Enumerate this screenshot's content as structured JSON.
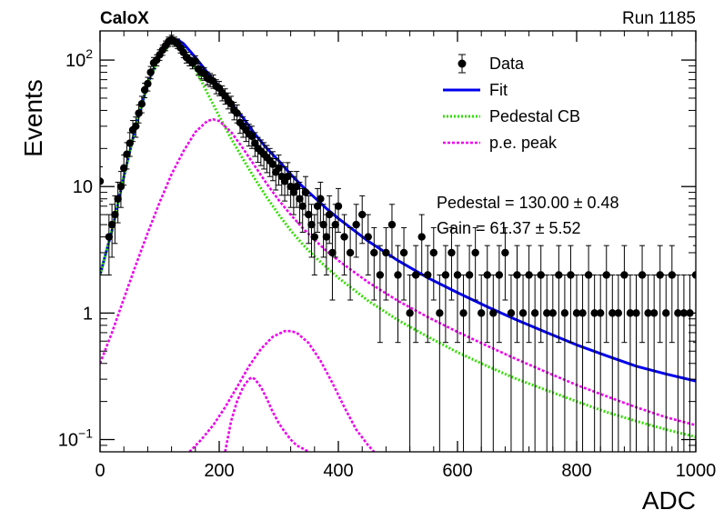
{
  "chart_data": {
    "type": "scatter",
    "experiment_label": "CaloX",
    "run_label": "Run 1185",
    "xlabel": "ADC",
    "ylabel": "Events",
    "xlim": [
      0,
      1000
    ],
    "ylim": [
      0.08,
      170
    ],
    "yscale": "log",
    "grid": false,
    "legend_position": "top-right",
    "x_ticks": [
      0,
      200,
      400,
      600,
      800,
      1000
    ],
    "y_ticks": [
      {
        "value": 0.1,
        "base": "10",
        "exp": "−1"
      },
      {
        "value": 1,
        "base": "1",
        "exp": ""
      },
      {
        "value": 10,
        "base": "10",
        "exp": ""
      },
      {
        "value": 100,
        "base": "10",
        "exp": "2"
      }
    ],
    "legend": [
      {
        "label": "Data",
        "style": "marker",
        "color": "#000000"
      },
      {
        "label": "Fit",
        "style": "solid",
        "color": "#0000ee"
      },
      {
        "label": "Pedestal CB",
        "style": "dotted",
        "color": "#33dd00"
      },
      {
        "label": "p.e. peak",
        "style": "dashed",
        "color": "#ee00ee"
      }
    ],
    "annotations": [
      "Pedestal = 130.00 ± 0.48",
      "Gain = 61.37 ± 5.52"
    ],
    "series": [
      {
        "name": "Data",
        "type": "points",
        "color": "#000000",
        "x": [
          0,
          15,
          20,
          25,
          30,
          35,
          40,
          45,
          50,
          55,
          60,
          65,
          70,
          75,
          80,
          85,
          90,
          95,
          100,
          105,
          110,
          115,
          120,
          125,
          130,
          135,
          140,
          145,
          150,
          155,
          160,
          165,
          170,
          175,
          180,
          185,
          190,
          195,
          200,
          205,
          210,
          215,
          220,
          225,
          230,
          235,
          240,
          245,
          250,
          255,
          260,
          265,
          270,
          275,
          280,
          285,
          290,
          295,
          300,
          305,
          310,
          315,
          320,
          325,
          330,
          335,
          340,
          345,
          350,
          355,
          360,
          365,
          370,
          375,
          380,
          385,
          390,
          395,
          400,
          410,
          420,
          430,
          440,
          450,
          460,
          470,
          480,
          490,
          500,
          510,
          520,
          530,
          540,
          550,
          560,
          570,
          580,
          590,
          600,
          610,
          620,
          630,
          640,
          650,
          660,
          670,
          680,
          690,
          700,
          710,
          720,
          730,
          740,
          750,
          760,
          770,
          780,
          790,
          800,
          810,
          820,
          830,
          840,
          850,
          860,
          870,
          880,
          890,
          900,
          910,
          920,
          930,
          940,
          950,
          960,
          970,
          980,
          990,
          1000
        ],
        "y": [
          11,
          4,
          5,
          6,
          8,
          10,
          14,
          18,
          22,
          28,
          30,
          38,
          45,
          58,
          65,
          80,
          95,
          100,
          110,
          120,
          130,
          140,
          145,
          140,
          135,
          125,
          115,
          105,
          100,
          95,
          98,
          85,
          80,
          78,
          72,
          70,
          68,
          62,
          60,
          55,
          52,
          48,
          45,
          40,
          38,
          32,
          30,
          28,
          26,
          25,
          22,
          20,
          19,
          18,
          17,
          16,
          15,
          13,
          14,
          12,
          11,
          12,
          10,
          9,
          10,
          8,
          7,
          9,
          6,
          5,
          4,
          7,
          8,
          5,
          4,
          6,
          3,
          5,
          7,
          4,
          3,
          5,
          6,
          4,
          3,
          2,
          3,
          5,
          2,
          3,
          1,
          2,
          4,
          2,
          3,
          1,
          2,
          3,
          2,
          1,
          2,
          3,
          1,
          2,
          1,
          2,
          3,
          1,
          2,
          1,
          2,
          1,
          2,
          1,
          1,
          2,
          1,
          2,
          1,
          1,
          2,
          1,
          1,
          2,
          1,
          1,
          2,
          1,
          1,
          2,
          1,
          1,
          2,
          1,
          2,
          1,
          1,
          1,
          2
        ]
      },
      {
        "name": "Fit",
        "type": "line",
        "color": "#0000ee",
        "x": [
          0,
          20,
          40,
          60,
          80,
          100,
          120,
          130,
          140,
          160,
          180,
          200,
          220,
          240,
          260,
          280,
          300,
          320,
          340,
          360,
          380,
          400,
          450,
          500,
          550,
          600,
          650,
          700,
          750,
          800,
          850,
          900,
          950,
          1000
        ],
        "y": [
          2,
          4.5,
          12,
          30,
          65,
          110,
          140,
          145,
          135,
          105,
          80,
          62,
          46,
          35,
          26,
          20,
          16,
          12.5,
          10,
          8.2,
          6.7,
          5.6,
          3.7,
          2.6,
          1.9,
          1.45,
          1.12,
          0.88,
          0.7,
          0.56,
          0.46,
          0.38,
          0.33,
          0.29
        ]
      },
      {
        "name": "Pedestal CB",
        "type": "line",
        "color": "#33dd00",
        "x": [
          0,
          20,
          40,
          60,
          80,
          100,
          120,
          130,
          140,
          160,
          180,
          200,
          220,
          240,
          260,
          280,
          300,
          320,
          340,
          360,
          380,
          400,
          450,
          500,
          550,
          600,
          650,
          700,
          750,
          800,
          850,
          900,
          950,
          1000
        ],
        "y": [
          2,
          4.5,
          12,
          30,
          65,
          108,
          135,
          138,
          125,
          85,
          55,
          36,
          24,
          16.5,
          11.5,
          8.2,
          6,
          4.5,
          3.5,
          2.8,
          2.3,
          1.9,
          1.25,
          0.88,
          0.65,
          0.49,
          0.38,
          0.3,
          0.245,
          0.2,
          0.165,
          0.14,
          0.12,
          0.105
        ]
      },
      {
        "name": "p.e. peak (1 p.e.)",
        "type": "line",
        "color": "#ee00ee",
        "x": [
          0,
          20,
          40,
          60,
          80,
          100,
          120,
          140,
          160,
          180,
          190,
          200,
          220,
          240,
          260,
          280,
          300,
          320,
          340,
          360,
          380,
          400,
          450,
          500,
          550,
          600,
          650,
          700,
          750,
          800,
          850,
          900,
          950,
          1000
        ],
        "y": [
          0.4,
          0.7,
          1.3,
          2.4,
          4.3,
          7.5,
          12.5,
          19,
          27,
          33,
          34,
          33,
          27,
          20,
          14.5,
          10.5,
          7.8,
          6,
          4.7,
          3.8,
          3.1,
          2.6,
          1.75,
          1.25,
          0.93,
          0.71,
          0.55,
          0.43,
          0.34,
          0.27,
          0.22,
          0.18,
          0.15,
          0.13
        ]
      },
      {
        "name": "p.e. peak (2 p.e.)",
        "type": "line",
        "color": "#ee00ee",
        "x": [
          210,
          220,
          230,
          240,
          250,
          255,
          260,
          270,
          280,
          290,
          300,
          310,
          320,
          330,
          340,
          350
        ],
        "y": [
          0.08,
          0.14,
          0.2,
          0.26,
          0.3,
          0.31,
          0.3,
          0.26,
          0.21,
          0.165,
          0.135,
          0.115,
          0.1,
          0.09,
          0.085,
          0.08
        ]
      },
      {
        "name": "p.e. peak (3 p.e.)",
        "type": "line",
        "color": "#ee00ee",
        "x": [
          150,
          170,
          190,
          210,
          230,
          250,
          270,
          290,
          310,
          320,
          330,
          350,
          370,
          390,
          410,
          430,
          450,
          460
        ],
        "y": [
          0.08,
          0.1,
          0.13,
          0.18,
          0.26,
          0.38,
          0.52,
          0.65,
          0.72,
          0.72,
          0.7,
          0.58,
          0.42,
          0.28,
          0.18,
          0.12,
          0.09,
          0.08
        ]
      }
    ]
  }
}
